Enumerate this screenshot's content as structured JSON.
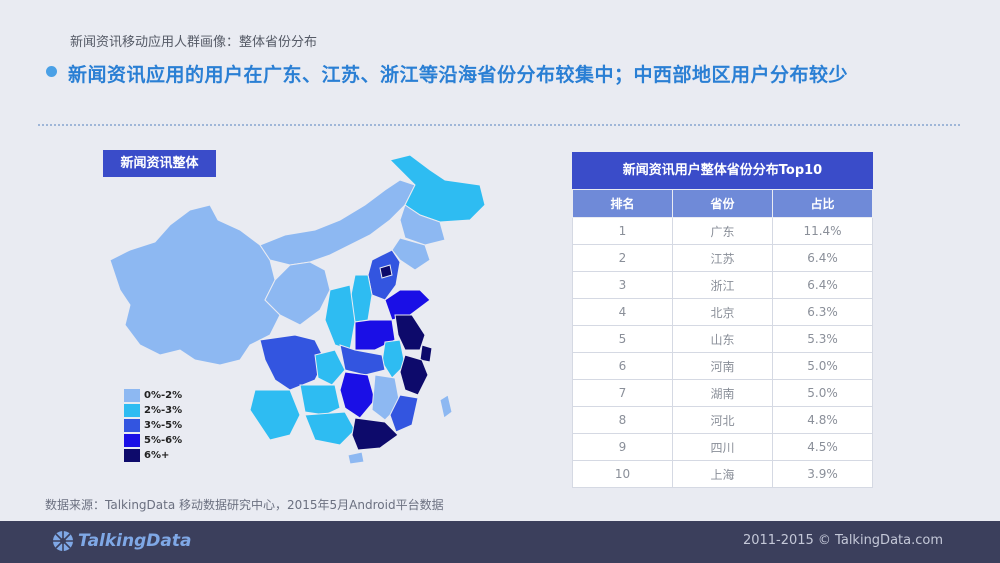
{
  "header": {
    "subtitle": "新闻资讯移动应用人群画像：整体省份分布",
    "headline": "新闻资讯应用的用户在广东、江苏、浙江等沿海省份分布较集中；中西部地区用户分布较少"
  },
  "map": {
    "label": "新闻资讯整体",
    "legend": [
      {
        "label": "0%-2%",
        "color": "#8db8f2"
      },
      {
        "label": "2%-3%",
        "color": "#2ebcf2"
      },
      {
        "label": "3%-5%",
        "color": "#3355e0"
      },
      {
        "label": "5%-6%",
        "color": "#1a0fe6"
      },
      {
        "label": "6%+",
        "color": "#0d0a6b"
      }
    ]
  },
  "table": {
    "title": "新闻资讯用户整体省份分布Top10",
    "headers": [
      "排名",
      "省份",
      "占比"
    ],
    "rows": [
      [
        "1",
        "广东",
        "11.4%"
      ],
      [
        "2",
        "江苏",
        "6.4%"
      ],
      [
        "3",
        "浙江",
        "6.4%"
      ],
      [
        "4",
        "北京",
        "6.3%"
      ],
      [
        "5",
        "山东",
        "5.3%"
      ],
      [
        "6",
        "河南",
        "5.0%"
      ],
      [
        "7",
        "湖南",
        "5.0%"
      ],
      [
        "8",
        "河北",
        "4.8%"
      ],
      [
        "9",
        "四川",
        "4.5%"
      ],
      [
        "10",
        "上海",
        "3.9%"
      ]
    ]
  },
  "source": "数据来源：TalkingData 移动数据研究中心，2015年5月Android平台数据",
  "footer": {
    "logo": "TalkingData",
    "copyright": "2011-2015 © TalkingData.com"
  }
}
